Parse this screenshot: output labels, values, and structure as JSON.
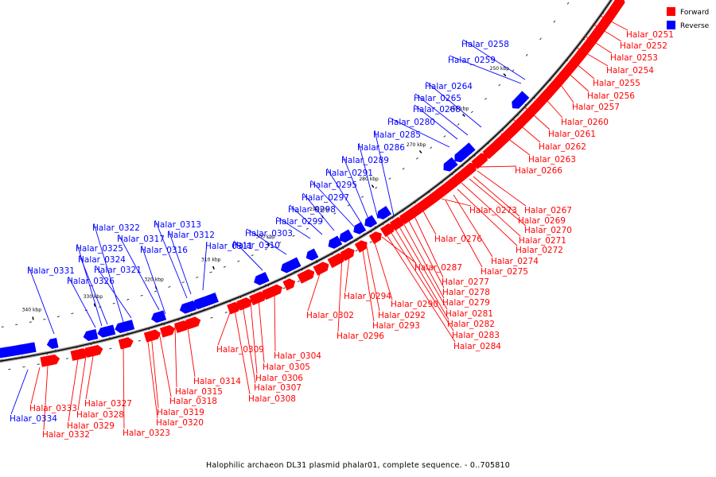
{
  "caption": "Halophilic archaeon DL31 plasmid phalar01, complete sequence. - 0..705810",
  "legend": [
    {
      "label": "Forward",
      "color": "#ff0000"
    },
    {
      "label": "Reverse",
      "color": "#0000ff"
    }
  ],
  "tick_labels": [
    "250 kbp",
    "260 kbp",
    "270 kbp",
    "280 kbp",
    "290 kbp",
    "300 kbp",
    "310 kbp",
    "320 kbp",
    "330 kbp",
    "340 kbp"
  ],
  "forward_labels": [
    "Halar_0251",
    "Halar_0252",
    "Halar_0253",
    "Halar_0254",
    "Halar_0255",
    "Halar_0256",
    "Halar_0257",
    "Halar_0260",
    "Halar_0261",
    "Halar_0262",
    "Halar_0263",
    "Halar_0266",
    "Halar_0267",
    "Halar_0269",
    "Halar_0270",
    "Halar_0271",
    "Halar_0272",
    "Halar_0273",
    "Halar_0274",
    "Halar_0275",
    "Halar_0276",
    "Halar_0277",
    "Halar_0278",
    "Halar_0279",
    "Halar_0281",
    "Halar_0282",
    "Halar_0283",
    "Halar_0284",
    "Halar_0287",
    "Halar_0290",
    "Halar_0292",
    "Halar_0293",
    "Halar_0294",
    "Halar_0296",
    "Halar_0302",
    "Halar_0304",
    "Halar_0305",
    "Halar_0306",
    "Halar_0307",
    "Halar_0308",
    "Halar_0309",
    "Halar_0314",
    "Halar_0315",
    "Halar_0318",
    "Halar_0319",
    "Halar_0320",
    "Halar_0323",
    "Halar_0327",
    "Halar_0328",
    "Halar_0329",
    "Halar_0332",
    "Halar_0333"
  ],
  "reverse_labels": [
    "Halar_0258",
    "Halar_0259",
    "Halar_0264",
    "Halar_0265",
    "Halar_0268",
    "Halar_0280",
    "Halar_0285",
    "Halar_0286",
    "Halar_0289",
    "Halar_0291",
    "Halar_0295",
    "Halar_0297",
    "Halar_0298",
    "Halar_0299",
    "Halar_0303",
    "Halar_0310",
    "Halar_0311",
    "Halar_0312",
    "Halar_0313",
    "Halar_0316",
    "Halar_0317",
    "Halar_0321",
    "Halar_0322",
    "Halar_0324",
    "Halar_0325",
    "Halar_0326",
    "Halar_0331",
    "Halar_0334"
  ]
}
